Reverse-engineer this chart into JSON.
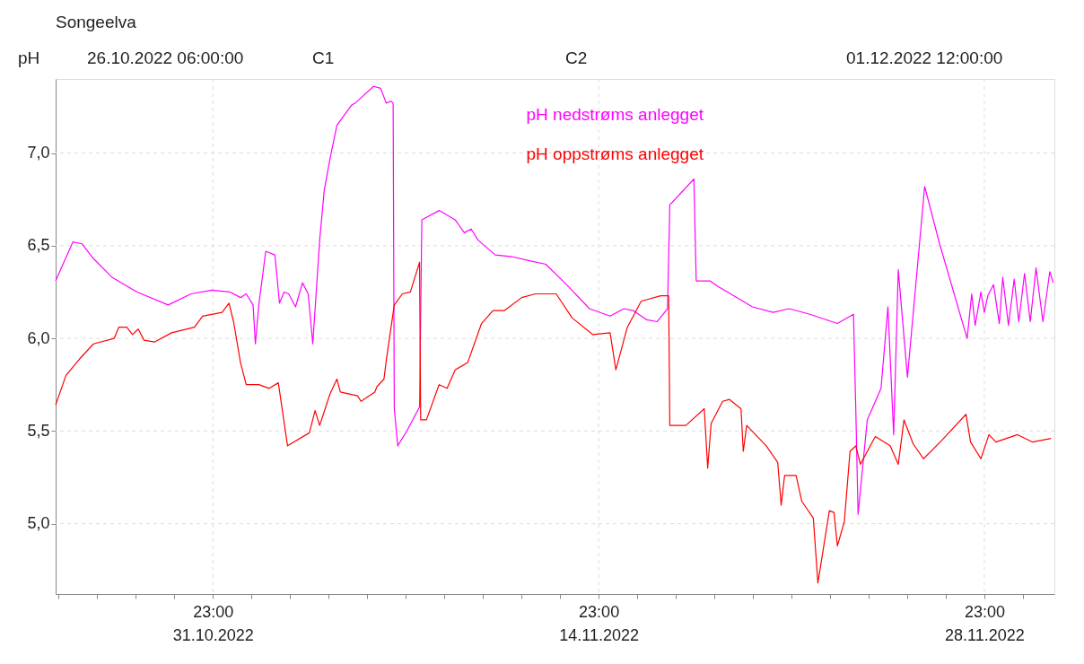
{
  "chart_data": {
    "type": "line",
    "title": "Songeelva",
    "ylabel": "pH",
    "annotations": [
      "26.10.2022 06:00:00",
      "C1",
      "C2",
      "01.12.2022 12:00:00"
    ],
    "xlim": [
      "2022-10-26T06:00",
      "2022-12-01T12:00"
    ],
    "xticks": [
      {
        "value": "2022-10-26T08:36",
        "label": null
      },
      {
        "value": "2022-10-27T18:12",
        "label": null
      },
      {
        "value": "2022-10-29T03:48",
        "label": null
      },
      {
        "value": "2022-10-30T13:24",
        "label": null
      },
      {
        "value": "2022-10-31T23:00",
        "label": "23:00\n31.10.2022"
      },
      {
        "value": "2022-11-02T08:36",
        "label": null
      },
      {
        "value": "2022-11-03T18:12",
        "label": null
      },
      {
        "value": "2022-11-05T03:48",
        "label": null
      },
      {
        "value": "2022-11-06T13:24",
        "label": null
      },
      {
        "value": "2022-11-07T23:00",
        "label": null
      },
      {
        "value": "2022-11-09T08:36",
        "label": null
      },
      {
        "value": "2022-11-10T18:12",
        "label": null
      },
      {
        "value": "2022-11-12T03:48",
        "label": null
      },
      {
        "value": "2022-11-13T13:24",
        "label": null
      },
      {
        "value": "2022-11-14T23:00",
        "label": "23:00\n14.11.2022"
      },
      {
        "value": "2022-11-16T08:36",
        "label": null
      },
      {
        "value": "2022-11-17T18:12",
        "label": null
      },
      {
        "value": "2022-11-19T03:48",
        "label": null
      },
      {
        "value": "2022-11-20T13:24",
        "label": null
      },
      {
        "value": "2022-11-21T23:00",
        "label": null
      },
      {
        "value": "2022-11-23T08:36",
        "label": null
      },
      {
        "value": "2022-11-24T18:12",
        "label": null
      },
      {
        "value": "2022-11-26T03:48",
        "label": null
      },
      {
        "value": "2022-11-27T13:24",
        "label": null
      },
      {
        "value": "2022-11-28T23:00",
        "label": "23:00\n28.11.2022"
      },
      {
        "value": "2022-11-30T08:36",
        "label": null
      }
    ],
    "ylim": [
      4.62,
      7.4
    ],
    "yticks": [
      {
        "value": 5,
        "label": "5,0"
      },
      {
        "value": 5.5,
        "label": "5,5"
      },
      {
        "value": 6,
        "label": "6,0"
      },
      {
        "value": 6.5,
        "label": "6,5"
      },
      {
        "value": 7,
        "label": "7,0"
      }
    ],
    "grid": true,
    "line_style": "solid",
    "series": [
      {
        "name": "pH nedstrøms anlegget",
        "color": "#ff00ff",
        "x": [
          "2022-10-26T06:00",
          "2022-10-26T21:00",
          "2022-10-27T05:00",
          "2022-10-27T15:00",
          "2022-10-28T07:00",
          "2022-10-29T05:00",
          "2022-10-30T08:00",
          "2022-10-31T04:00",
          "2022-10-31T22:00",
          "2022-11-01T14:00",
          "2022-11-01T23:00",
          "2022-11-02T04:00",
          "2022-11-02T10:00",
          "2022-11-02T12:00",
          "2022-11-02T15:00",
          "2022-11-02T21:00",
          "2022-11-03T05:00",
          "2022-11-03T09:00",
          "2022-11-03T13:00",
          "2022-11-03T17:00",
          "2022-11-03T23:00",
          "2022-11-04T05:00",
          "2022-11-04T10:00",
          "2022-11-04T14:00",
          "2022-11-04T20:00",
          "2022-11-05T00:00",
          "2022-11-05T05:00",
          "2022-11-05T11:00",
          "2022-11-06T00:00",
          "2022-11-06T03:00",
          "2022-11-06T10:00",
          "2022-11-06T19:00",
          "2022-11-07T01:00",
          "2022-11-07T06:00",
          "2022-11-07T10:00",
          "2022-11-07T12:00",
          "2022-11-07T13:00",
          "2022-11-07T16:00",
          "2022-11-08T00:00",
          "2022-11-08T11:00",
          "2022-11-08T13:00",
          "2022-11-09T04:00",
          "2022-11-09T18:00",
          "2022-11-10T02:00",
          "2022-11-10T08:00",
          "2022-11-10T14:00",
          "2022-11-11T05:00",
          "2022-11-11T20:00",
          "2022-11-12T10:00",
          "2022-11-13T01:00",
          "2022-11-13T19:00",
          "2022-11-14T15:00",
          "2022-11-15T09:00",
          "2022-11-15T21:00",
          "2022-11-16T05:00",
          "2022-11-16T17:00",
          "2022-11-17T02:00",
          "2022-11-17T11:00",
          "2022-11-17T13:00",
          "2022-11-18T10:00",
          "2022-11-18T12:00",
          "2022-11-19T00:00",
          "2022-11-19T07:00",
          "2022-11-20T13:00",
          "2022-11-21T07:00",
          "2022-11-21T21:00",
          "2022-11-22T15:00",
          "2022-11-23T15:00",
          "2022-11-24T05:00",
          "2022-11-24T07:00",
          "2022-11-24T09:00",
          "2022-11-24T17:00",
          "2022-11-25T05:00",
          "2022-11-25T11:00",
          "2022-11-25T16:00",
          "2022-11-25T20:00",
          "2022-11-26T04:00",
          "2022-11-26T19:00",
          "2022-11-27T08:00",
          "2022-11-28T08:00",
          "2022-11-28T12:00",
          "2022-11-28T15:00",
          "2022-11-28T20:00",
          "2022-11-28T23:00",
          "2022-11-29T02:00",
          "2022-11-29T07:00",
          "2022-11-29T12:00",
          "2022-11-29T15:00",
          "2022-11-29T20:00",
          "2022-11-30T01:00",
          "2022-11-30T05:00",
          "2022-11-30T10:00",
          "2022-11-30T15:00",
          "2022-11-30T20:00",
          "2022-12-01T02:00",
          "2022-12-01T08:00",
          "2022-12-01T11:00"
        ],
        "values": [
          6.31,
          6.52,
          6.51,
          6.43,
          6.33,
          6.25,
          6.18,
          6.24,
          6.26,
          6.25,
          6.22,
          6.24,
          6.18,
          5.97,
          6.18,
          6.47,
          6.45,
          6.19,
          6.25,
          6.24,
          6.17,
          6.3,
          6.24,
          5.97,
          6.53,
          6.8,
          6.97,
          7.15,
          7.26,
          7.27,
          7.31,
          7.36,
          7.35,
          7.27,
          7.28,
          7.27,
          5.62,
          5.42,
          5.5,
          5.63,
          6.64,
          6.69,
          6.64,
          6.57,
          6.59,
          6.53,
          6.45,
          6.44,
          6.42,
          6.4,
          6.29,
          6.16,
          6.12,
          6.16,
          6.15,
          6.1,
          6.09,
          6.16,
          6.72,
          6.86,
          6.31,
          6.31,
          6.28,
          6.17,
          6.14,
          6.16,
          6.13,
          6.08,
          6.13,
          5.62,
          5.05,
          5.56,
          5.73,
          6.17,
          5.48,
          6.37,
          5.79,
          6.82,
          6.51,
          6.0,
          6.24,
          6.07,
          6.25,
          6.14,
          6.23,
          6.29,
          6.08,
          6.33,
          6.07,
          6.32,
          6.09,
          6.35,
          6.09,
          6.38,
          6.09,
          6.36,
          6.3
        ]
      },
      {
        "name": "pH oppstrøms anlegget",
        "color": "#ff0000",
        "x": [
          "2022-10-26T06:00",
          "2022-10-26T15:00",
          "2022-10-27T03:00",
          "2022-10-27T15:00",
          "2022-10-28T09:00",
          "2022-10-28T13:00",
          "2022-10-28T20:00",
          "2022-10-29T01:00",
          "2022-10-29T06:00",
          "2022-10-29T11:00",
          "2022-10-29T20:00",
          "2022-10-30T11:00",
          "2022-10-31T07:00",
          "2022-10-31T14:00",
          "2022-11-01T07:00",
          "2022-11-01T13:00",
          "2022-11-01T17:00",
          "2022-11-01T23:00",
          "2022-11-02T04:00",
          "2022-11-02T15:00",
          "2022-11-03T00:00",
          "2022-11-03T08:00",
          "2022-11-03T16:00",
          "2022-11-04T11:00",
          "2022-11-04T16:00",
          "2022-11-04T20:00",
          "2022-11-05T05:00",
          "2022-11-05T11:00",
          "2022-11-05T14:00",
          "2022-11-06T05:00",
          "2022-11-06T08:00",
          "2022-11-06T20:00",
          "2022-11-06T22:00",
          "2022-11-07T04:00",
          "2022-11-07T06:00",
          "2022-11-07T13:00",
          "2022-11-07T20:00",
          "2022-11-08T03:00",
          "2022-11-08T11:00",
          "2022-11-08T12:00",
          "2022-11-08T17:00",
          "2022-11-09T04:00",
          "2022-11-09T11:00",
          "2022-11-09T18:00",
          "2022-11-10T05:00",
          "2022-11-10T17:00",
          "2022-11-11T03:00",
          "2022-11-11T13:00",
          "2022-11-12T04:00",
          "2022-11-12T16:00",
          "2022-11-13T10:00",
          "2022-11-14T00:00",
          "2022-11-14T18:00",
          "2022-11-15T09:00",
          "2022-11-15T14:00",
          "2022-11-16T00:00",
          "2022-11-16T12:00",
          "2022-11-17T05:00",
          "2022-11-17T12:00",
          "2022-11-17T13:00",
          "2022-11-18T03:00",
          "2022-11-18T19:00",
          "2022-11-18T22:00",
          "2022-11-19T01:00",
          "2022-11-19T11:00",
          "2022-11-19T17:00",
          "2022-11-20T03:00",
          "2022-11-20T05:00",
          "2022-11-20T08:00",
          "2022-11-21T01:00",
          "2022-11-21T11:00",
          "2022-11-21T14:00",
          "2022-11-21T17:00",
          "2022-11-22T03:00",
          "2022-11-22T08:00",
          "2022-11-22T18:00",
          "2022-11-22T22:00",
          "2022-11-23T08:00",
          "2022-11-23T12:00",
          "2022-11-23T15:00",
          "2022-11-23T21:00",
          "2022-11-24T02:00",
          "2022-11-24T07:00",
          "2022-11-24T11:00",
          "2022-11-25T00:00",
          "2022-11-25T13:00",
          "2022-11-25T20:00",
          "2022-11-26T01:00",
          "2022-11-26T09:00",
          "2022-11-26T18:00",
          "2022-11-27T10:00",
          "2022-11-28T07:00",
          "2022-11-28T11:00",
          "2022-11-28T20:00",
          "2022-11-29T03:00",
          "2022-11-29T09:00",
          "2022-11-30T04:00",
          "2022-11-30T17:00",
          "2022-12-01T09:00"
        ],
        "values": [
          5.64,
          5.8,
          5.89,
          5.97,
          6.0,
          6.06,
          6.06,
          6.02,
          6.05,
          5.99,
          5.98,
          6.03,
          6.06,
          6.12,
          6.14,
          6.19,
          6.09,
          5.87,
          5.75,
          5.75,
          5.73,
          5.76,
          5.42,
          5.49,
          5.61,
          5.53,
          5.7,
          5.78,
          5.71,
          5.69,
          5.66,
          5.71,
          5.74,
          5.78,
          5.88,
          6.18,
          6.24,
          6.25,
          6.41,
          5.56,
          5.56,
          5.75,
          5.73,
          5.83,
          5.87,
          6.08,
          6.15,
          6.15,
          6.22,
          6.24,
          6.24,
          6.11,
          6.02,
          6.03,
          5.83,
          6.06,
          6.2,
          6.23,
          6.23,
          5.53,
          5.53,
          5.62,
          5.3,
          5.54,
          5.66,
          5.67,
          5.62,
          5.39,
          5.53,
          5.42,
          5.33,
          5.1,
          5.26,
          5.26,
          5.12,
          5.03,
          4.68,
          5.07,
          5.06,
          4.88,
          5.01,
          5.39,
          5.42,
          5.32,
          5.47,
          5.42,
          5.32,
          5.56,
          5.43,
          5.35,
          5.45,
          5.59,
          5.44,
          5.35,
          5.48,
          5.44,
          5.48,
          5.44,
          5.46
        ]
      }
    ]
  }
}
